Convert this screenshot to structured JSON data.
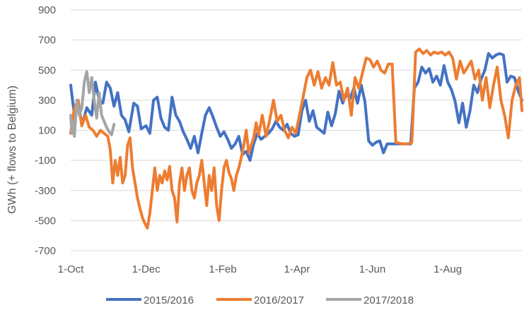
{
  "chart_data": {
    "type": "line",
    "title": "",
    "xlabel": "",
    "ylabel": "GWh (+ flows to Belgium)",
    "ylim": [
      -700,
      900
    ],
    "yticks": [
      -700,
      -500,
      -300,
      -100,
      100,
      300,
      500,
      700,
      900
    ],
    "xlim": [
      "2015-10-01",
      "2016-09-30"
    ],
    "xticks": [
      {
        "date": "2015-10-01",
        "label": "1-Oct"
      },
      {
        "date": "2015-12-01",
        "label": "1-Dec"
      },
      {
        "date": "2016-02-01",
        "label": "1-Feb"
      },
      {
        "date": "2016-04-01",
        "label": "1-Apr"
      },
      {
        "date": "2016-06-01",
        "label": "1-Jun"
      },
      {
        "date": "2016-08-01",
        "label": "1-Aug"
      }
    ],
    "grid": "horizontal",
    "legend_position": "bottom",
    "series": [
      {
        "name": "2015/2016",
        "color": "#4472C4",
        "points": [
          [
            "2015-10-01",
            400
          ],
          [
            "2015-10-04",
            200
          ],
          [
            "2015-10-07",
            300
          ],
          [
            "2015-10-10",
            130
          ],
          [
            "2015-10-14",
            250
          ],
          [
            "2015-10-18",
            200
          ],
          [
            "2015-10-21",
            420
          ],
          [
            "2015-10-24",
            300
          ],
          [
            "2015-10-27",
            280
          ],
          [
            "2015-10-30",
            420
          ],
          [
            "2015-11-02",
            380
          ],
          [
            "2015-11-05",
            260
          ],
          [
            "2015-11-08",
            350
          ],
          [
            "2015-11-11",
            200
          ],
          [
            "2015-11-14",
            170
          ],
          [
            "2015-11-17",
            90
          ],
          [
            "2015-11-21",
            280
          ],
          [
            "2015-11-24",
            260
          ],
          [
            "2015-11-27",
            110
          ],
          [
            "2015-12-01",
            130
          ],
          [
            "2015-12-04",
            80
          ],
          [
            "2015-12-07",
            300
          ],
          [
            "2015-12-10",
            320
          ],
          [
            "2015-12-13",
            180
          ],
          [
            "2015-12-16",
            120
          ],
          [
            "2015-12-19",
            100
          ],
          [
            "2015-12-22",
            320
          ],
          [
            "2015-12-25",
            200
          ],
          [
            "2015-12-28",
            160
          ],
          [
            "2015-12-31",
            90
          ],
          [
            "2016-01-03",
            40
          ],
          [
            "2016-01-06",
            -20
          ],
          [
            "2016-01-09",
            60
          ],
          [
            "2016-01-12",
            -50
          ],
          [
            "2016-01-15",
            80
          ],
          [
            "2016-01-18",
            200
          ],
          [
            "2016-01-21",
            250
          ],
          [
            "2016-01-24",
            190
          ],
          [
            "2016-01-27",
            120
          ],
          [
            "2016-01-30",
            60
          ],
          [
            "2016-02-02",
            90
          ],
          [
            "2016-02-05",
            40
          ],
          [
            "2016-02-08",
            -20
          ],
          [
            "2016-02-11",
            10
          ],
          [
            "2016-02-14",
            60
          ],
          [
            "2016-02-17",
            -60
          ],
          [
            "2016-02-20",
            -40
          ],
          [
            "2016-02-23",
            -100
          ],
          [
            "2016-02-26",
            10
          ],
          [
            "2016-02-29",
            80
          ],
          [
            "2016-03-03",
            40
          ],
          [
            "2016-03-06",
            60
          ],
          [
            "2016-03-09",
            80
          ],
          [
            "2016-03-12",
            110
          ],
          [
            "2016-03-15",
            160
          ],
          [
            "2016-03-18",
            120
          ],
          [
            "2016-03-21",
            100
          ],
          [
            "2016-03-24",
            140
          ],
          [
            "2016-03-27",
            80
          ],
          [
            "2016-03-30",
            60
          ],
          [
            "2016-04-02",
            70
          ],
          [
            "2016-04-05",
            230
          ],
          [
            "2016-04-08",
            300
          ],
          [
            "2016-04-11",
            160
          ],
          [
            "2016-04-14",
            230
          ],
          [
            "2016-04-17",
            120
          ],
          [
            "2016-04-20",
            100
          ],
          [
            "2016-04-23",
            80
          ],
          [
            "2016-04-26",
            220
          ],
          [
            "2016-04-29",
            130
          ],
          [
            "2016-05-02",
            210
          ],
          [
            "2016-05-05",
            360
          ],
          [
            "2016-05-08",
            280
          ],
          [
            "2016-05-11",
            340
          ],
          [
            "2016-05-14",
            310
          ],
          [
            "2016-05-17",
            380
          ],
          [
            "2016-05-20",
            280
          ],
          [
            "2016-05-23",
            400
          ],
          [
            "2016-05-26",
            290
          ],
          [
            "2016-05-29",
            30
          ],
          [
            "2016-06-01",
            0
          ],
          [
            "2016-06-04",
            20
          ],
          [
            "2016-06-07",
            30
          ],
          [
            "2016-06-10",
            -50
          ],
          [
            "2016-06-13",
            10
          ],
          [
            "2016-06-20",
            10
          ],
          [
            "2016-06-27",
            10
          ],
          [
            "2016-07-02",
            10
          ],
          [
            "2016-07-05",
            380
          ],
          [
            "2016-07-08",
            420
          ],
          [
            "2016-07-11",
            520
          ],
          [
            "2016-07-14",
            480
          ],
          [
            "2016-07-17",
            510
          ],
          [
            "2016-07-20",
            420
          ],
          [
            "2016-07-23",
            460
          ],
          [
            "2016-07-26",
            400
          ],
          [
            "2016-07-29",
            530
          ],
          [
            "2016-08-01",
            420
          ],
          [
            "2016-08-04",
            370
          ],
          [
            "2016-08-07",
            290
          ],
          [
            "2016-08-10",
            150
          ],
          [
            "2016-08-13",
            280
          ],
          [
            "2016-08-16",
            120
          ],
          [
            "2016-08-19",
            230
          ],
          [
            "2016-08-22",
            400
          ],
          [
            "2016-08-25",
            350
          ],
          [
            "2016-08-28",
            440
          ],
          [
            "2016-08-31",
            500
          ],
          [
            "2016-09-03",
            610
          ],
          [
            "2016-09-06",
            580
          ],
          [
            "2016-09-09",
            600
          ],
          [
            "2016-09-12",
            610
          ],
          [
            "2016-09-15",
            600
          ],
          [
            "2016-09-18",
            420
          ],
          [
            "2016-09-21",
            460
          ],
          [
            "2016-09-24",
            450
          ],
          [
            "2016-09-27",
            360
          ],
          [
            "2016-09-30",
            300
          ]
        ]
      },
      {
        "name": "2016/2017",
        "color": "#ED7D31",
        "points": [
          [
            "2015-10-01",
            80
          ],
          [
            "2015-10-04",
            250
          ],
          [
            "2015-10-07",
            300
          ],
          [
            "2015-10-10",
            130
          ],
          [
            "2015-10-13",
            200
          ],
          [
            "2015-10-16",
            120
          ],
          [
            "2015-10-19",
            100
          ],
          [
            "2015-10-22",
            60
          ],
          [
            "2015-10-25",
            100
          ],
          [
            "2015-10-28",
            80
          ],
          [
            "2015-10-31",
            60
          ],
          [
            "2015-11-02",
            -30
          ],
          [
            "2015-11-04",
            -250
          ],
          [
            "2015-11-06",
            -100
          ],
          [
            "2015-11-08",
            -200
          ],
          [
            "2015-11-10",
            -80
          ],
          [
            "2015-11-12",
            -250
          ],
          [
            "2015-11-14",
            -200
          ],
          [
            "2015-11-16",
            0
          ],
          [
            "2015-11-18",
            50
          ],
          [
            "2015-11-20",
            -150
          ],
          [
            "2015-11-22",
            -250
          ],
          [
            "2015-11-24",
            -350
          ],
          [
            "2015-11-26",
            -420
          ],
          [
            "2015-11-28",
            -480
          ],
          [
            "2015-11-30",
            -520
          ],
          [
            "2015-12-02",
            -550
          ],
          [
            "2015-12-04",
            -450
          ],
          [
            "2015-12-06",
            -300
          ],
          [
            "2015-12-08",
            -150
          ],
          [
            "2015-12-10",
            -300
          ],
          [
            "2015-12-12",
            -200
          ],
          [
            "2015-12-14",
            -250
          ],
          [
            "2015-12-16",
            -170
          ],
          [
            "2015-12-18",
            -230
          ],
          [
            "2015-12-20",
            -140
          ],
          [
            "2015-12-22",
            -300
          ],
          [
            "2015-12-24",
            -350
          ],
          [
            "2015-12-26",
            -510
          ],
          [
            "2015-12-28",
            -250
          ],
          [
            "2015-12-30",
            -150
          ],
          [
            "2016-01-01",
            -300
          ],
          [
            "2016-01-03",
            -200
          ],
          [
            "2016-01-05",
            -150
          ],
          [
            "2016-01-07",
            -300
          ],
          [
            "2016-01-09",
            -350
          ],
          [
            "2016-01-11",
            -250
          ],
          [
            "2016-01-13",
            -200
          ],
          [
            "2016-01-15",
            -100
          ],
          [
            "2016-01-17",
            -250
          ],
          [
            "2016-01-19",
            -400
          ],
          [
            "2016-01-21",
            -200
          ],
          [
            "2016-01-23",
            -300
          ],
          [
            "2016-01-25",
            -150
          ],
          [
            "2016-01-27",
            -400
          ],
          [
            "2016-01-29",
            -500
          ],
          [
            "2016-01-31",
            -300
          ],
          [
            "2016-02-02",
            -150
          ],
          [
            "2016-02-04",
            -100
          ],
          [
            "2016-02-06",
            -180
          ],
          [
            "2016-02-08",
            -220
          ],
          [
            "2016-02-10",
            -300
          ],
          [
            "2016-02-12",
            -200
          ],
          [
            "2016-02-14",
            -150
          ],
          [
            "2016-02-16",
            -80
          ],
          [
            "2016-02-18",
            0
          ],
          [
            "2016-02-20",
            100
          ],
          [
            "2016-02-22",
            -50
          ],
          [
            "2016-02-24",
            0
          ],
          [
            "2016-02-26",
            50
          ],
          [
            "2016-02-28",
            150
          ],
          [
            "2016-03-01",
            70
          ],
          [
            "2016-03-04",
            200
          ],
          [
            "2016-03-07",
            60
          ],
          [
            "2016-03-10",
            170
          ],
          [
            "2016-03-13",
            300
          ],
          [
            "2016-03-16",
            160
          ],
          [
            "2016-03-19",
            200
          ],
          [
            "2016-03-22",
            100
          ],
          [
            "2016-03-25",
            50
          ],
          [
            "2016-03-28",
            120
          ],
          [
            "2016-03-31",
            80
          ],
          [
            "2016-04-03",
            200
          ],
          [
            "2016-04-06",
            320
          ],
          [
            "2016-04-09",
            450
          ],
          [
            "2016-04-12",
            500
          ],
          [
            "2016-04-15",
            400
          ],
          [
            "2016-04-18",
            490
          ],
          [
            "2016-04-21",
            380
          ],
          [
            "2016-04-24",
            450
          ],
          [
            "2016-04-27",
            400
          ],
          [
            "2016-04-30",
            550
          ],
          [
            "2016-05-03",
            400
          ],
          [
            "2016-05-06",
            420
          ],
          [
            "2016-05-09",
            300
          ],
          [
            "2016-05-12",
            380
          ],
          [
            "2016-05-15",
            200
          ],
          [
            "2016-05-18",
            450
          ],
          [
            "2016-05-21",
            380
          ],
          [
            "2016-05-24",
            480
          ],
          [
            "2016-05-27",
            580
          ],
          [
            "2016-05-30",
            570
          ],
          [
            "2016-06-02",
            520
          ],
          [
            "2016-06-05",
            560
          ],
          [
            "2016-06-08",
            500
          ],
          [
            "2016-06-11",
            480
          ],
          [
            "2016-06-14",
            540
          ],
          [
            "2016-06-17",
            540
          ],
          [
            "2016-06-20",
            20
          ],
          [
            "2016-06-25",
            10
          ],
          [
            "2016-06-30",
            10
          ],
          [
            "2016-07-03",
            20
          ],
          [
            "2016-07-06",
            620
          ],
          [
            "2016-07-09",
            640
          ],
          [
            "2016-07-12",
            610
          ],
          [
            "2016-07-15",
            630
          ],
          [
            "2016-07-18",
            600
          ],
          [
            "2016-07-21",
            620
          ],
          [
            "2016-07-24",
            610
          ],
          [
            "2016-07-27",
            620
          ],
          [
            "2016-07-30",
            600
          ],
          [
            "2016-08-02",
            620
          ],
          [
            "2016-08-05",
            580
          ],
          [
            "2016-08-08",
            440
          ],
          [
            "2016-08-11",
            560
          ],
          [
            "2016-08-14",
            480
          ],
          [
            "2016-08-17",
            520
          ],
          [
            "2016-08-20",
            560
          ],
          [
            "2016-08-23",
            440
          ],
          [
            "2016-08-26",
            500
          ],
          [
            "2016-08-29",
            300
          ],
          [
            "2016-09-01",
            450
          ],
          [
            "2016-09-04",
            250
          ],
          [
            "2016-09-07",
            400
          ],
          [
            "2016-09-10",
            520
          ],
          [
            "2016-09-13",
            300
          ],
          [
            "2016-09-16",
            200
          ],
          [
            "2016-09-19",
            50
          ],
          [
            "2016-09-22",
            300
          ],
          [
            "2016-09-25",
            400
          ],
          [
            "2016-09-28",
            450
          ],
          [
            "2016-09-30",
            230
          ]
        ]
      },
      {
        "name": "2017/2018",
        "color": "#A5A5A5",
        "points": [
          [
            "2015-10-01",
            200
          ],
          [
            "2015-10-02",
            80
          ],
          [
            "2015-10-03",
            160
          ],
          [
            "2015-10-04",
            60
          ],
          [
            "2015-10-06",
            300
          ],
          [
            "2015-10-08",
            200
          ],
          [
            "2015-10-10",
            250
          ],
          [
            "2015-10-12",
            420
          ],
          [
            "2015-10-14",
            490
          ],
          [
            "2015-10-16",
            350
          ],
          [
            "2015-10-18",
            450
          ],
          [
            "2015-10-20",
            300
          ],
          [
            "2015-10-22",
            180
          ],
          [
            "2015-10-24",
            350
          ],
          [
            "2015-10-26",
            200
          ],
          [
            "2015-10-28",
            160
          ],
          [
            "2015-10-30",
            120
          ],
          [
            "2015-11-01",
            90
          ],
          [
            "2015-11-03",
            70
          ],
          [
            "2015-11-05",
            140
          ]
        ]
      }
    ]
  }
}
